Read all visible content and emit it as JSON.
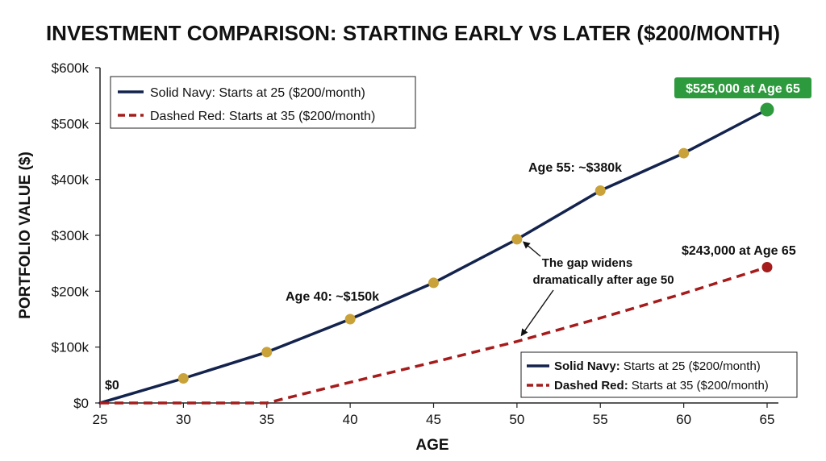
{
  "colors": {
    "navy": "#13234d",
    "red": "#a61c1c",
    "gold": "#c9a23a",
    "green": "#2e9a3e",
    "axis": "#222222"
  },
  "chart_data": {
    "type": "line",
    "title": "INVESTMENT COMPARISON: STARTING EARLY VS LATER ($200/MONTH)",
    "xlabel": "AGE",
    "ylabel": "PORTFOLIO VALUE ($)",
    "xlim": [
      25,
      65
    ],
    "ylim": [
      0,
      600000
    ],
    "x_ticks": [
      25,
      30,
      35,
      40,
      45,
      50,
      55,
      60,
      65
    ],
    "y_ticks": [
      0,
      100000,
      200000,
      300000,
      400000,
      500000,
      600000
    ],
    "y_tick_labels": [
      "$0",
      "$100k",
      "$200k",
      "$300k",
      "$400k",
      "$500k",
      "$600k"
    ],
    "grid": false,
    "series": [
      {
        "name": "Solid Navy: Starts at 25 ($200/month)",
        "style": "solid",
        "x": [
          25,
          30,
          35,
          40,
          45,
          50,
          55,
          60,
          65
        ],
        "y": [
          0,
          44000,
          91000,
          150000,
          215000,
          293000,
          380000,
          447000,
          525000
        ]
      },
      {
        "name": "Dashed Red: Starts at 35 ($200/month)",
        "style": "dashed",
        "x": [
          25,
          30,
          35,
          40,
          45,
          50,
          55,
          60,
          65
        ],
        "y": [
          0,
          0,
          0,
          37000,
          73000,
          110000,
          152000,
          196000,
          243000
        ]
      }
    ],
    "annotations": {
      "zero": "$0",
      "age40": "Age 40: ~$150k",
      "age55": "Age 55: ~$380k",
      "end_navy": "$525,000 at Age 65",
      "end_red": "$243,000 at Age 65",
      "gap_line1": "The gap widens",
      "gap_line2": "dramatically after age 50"
    },
    "legend_top": {
      "position": "top-left",
      "navy": "Solid Navy: Starts at 25 ($200/month)",
      "red": "Dashed Red: Starts at 35 ($200/month)"
    },
    "legend_bottom": {
      "position": "bottom-right",
      "navy_bold": "Solid Navy:",
      "navy_rest": "Starts at 25 ($200/month)",
      "red_bold": "Dashed Red:",
      "red_rest": "Starts at 35 ($200/month)"
    }
  }
}
